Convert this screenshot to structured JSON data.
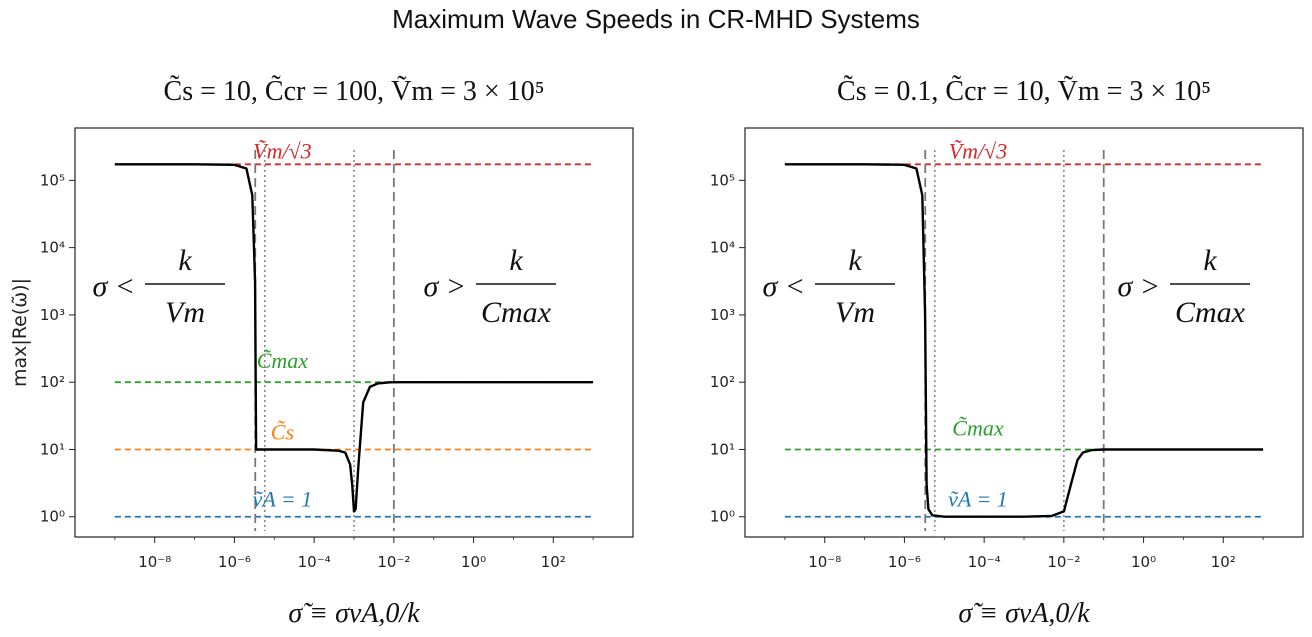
{
  "figure": {
    "suptitle": "Maximum Wave Speeds in CR-MHD Systems",
    "ylabel": "max|Re(ω̃)|",
    "xlabel": "σ̃ ≡ σv",
    "xlabel_sub": "A,0",
    "xlabel_tail": "/k"
  },
  "chart_data": [
    {
      "type": "line",
      "title": "C̃s = 10,  C̃cr = 100,  Ṽm = 3 × 10⁵",
      "xlabel": "σ̃ ≡ σvA,0/k",
      "ylabel": "max|Re(ω̃)|",
      "xscale": "log",
      "yscale": "log",
      "xlim": [
        1e-10,
        10000.0
      ],
      "ylim": [
        0.5,
        600000.0
      ],
      "xticks": [
        "10⁻⁸",
        "10⁻⁶",
        "10⁻⁴",
        "10⁻²",
        "10⁰",
        "10²"
      ],
      "yticks": [
        "10⁰",
        "10¹",
        "10²",
        "10³",
        "10⁴",
        "10⁵"
      ],
      "hlines": [
        {
          "label": "Ṽm/√3",
          "value": 173205,
          "color": "#d62728"
        },
        {
          "label": "C̃max",
          "value": 100,
          "color": "#2ca02c"
        },
        {
          "label": "C̃s",
          "value": 10,
          "color": "#ff7f0e"
        },
        {
          "label": "ṽA = 1",
          "value": 1,
          "color": "#1f77b4"
        }
      ],
      "vlines_dashed": [
        3.33e-06,
        0.01
      ],
      "vlines_dotted": [
        5.77e-06,
        0.001
      ],
      "region_labels": [
        "σ < k/Vm",
        "σ > k/Cmax"
      ],
      "series": [
        {
          "name": "max|Re(ω)|",
          "x": [
            1e-09,
            1e-07,
            1e-06,
            2e-06,
            2.8e-06,
            3.3e-06,
            3.5e-06,
            4e-06,
            1e-05,
            0.0001,
            0.0004,
            0.0006,
            0.0008,
            0.0009,
            0.001,
            0.0011,
            0.0013,
            0.0017,
            0.0025,
            0.004,
            0.008,
            0.015,
            0.1,
            1,
            1000
          ],
          "y": [
            173205,
            173205,
            170000,
            150000,
            60000,
            3000,
            10,
            10,
            10,
            10,
            9.6,
            9,
            6,
            3,
            1.2,
            1.3,
            6,
            50,
            85,
            96,
            99.6,
            100,
            100,
            100,
            100
          ]
        }
      ]
    },
    {
      "type": "line",
      "title": "C̃s = 0.1,  C̃cr = 10,  Ṽm = 3 × 10⁵",
      "xlabel": "σ̃ ≡ σvA,0/k",
      "ylabel": "max|Re(ω̃)|",
      "xscale": "log",
      "yscale": "log",
      "xlim": [
        1e-10,
        10000.0
      ],
      "ylim": [
        0.5,
        600000.0
      ],
      "xticks": [
        "10⁻⁸",
        "10⁻⁶",
        "10⁻⁴",
        "10⁻²",
        "10⁰",
        "10²"
      ],
      "yticks": [
        "10⁰",
        "10¹",
        "10²",
        "10³",
        "10⁴",
        "10⁵"
      ],
      "hlines": [
        {
          "label": "Ṽm/√3",
          "value": 173205,
          "color": "#d62728"
        },
        {
          "label": "C̃max",
          "value": 10,
          "color": "#2ca02c"
        },
        {
          "label": "ṽA = 1",
          "value": 1,
          "color": "#1f77b4"
        }
      ],
      "vlines_dashed": [
        3.33e-06,
        0.1
      ],
      "vlines_dotted": [
        5.77e-06,
        0.01
      ],
      "region_labels": [
        "σ < k/Vm",
        "σ > k/Cmax"
      ],
      "series": [
        {
          "name": "max|Re(ω)|",
          "x": [
            1e-09,
            1e-07,
            1e-06,
            2e-06,
            2.8e-06,
            3.3e-06,
            3.6e-06,
            4e-06,
            5e-06,
            1e-05,
            0.0001,
            0.001,
            0.005,
            0.01,
            0.015,
            0.022,
            0.03,
            0.05,
            0.1,
            1,
            1000
          ],
          "y": [
            173205,
            173205,
            170000,
            150000,
            60000,
            1000,
            3,
            1.3,
            1.05,
            1.0,
            1.0,
            1.0,
            1.03,
            1.2,
            3,
            7,
            9,
            9.8,
            10,
            10,
            10
          ]
        }
      ]
    }
  ]
}
